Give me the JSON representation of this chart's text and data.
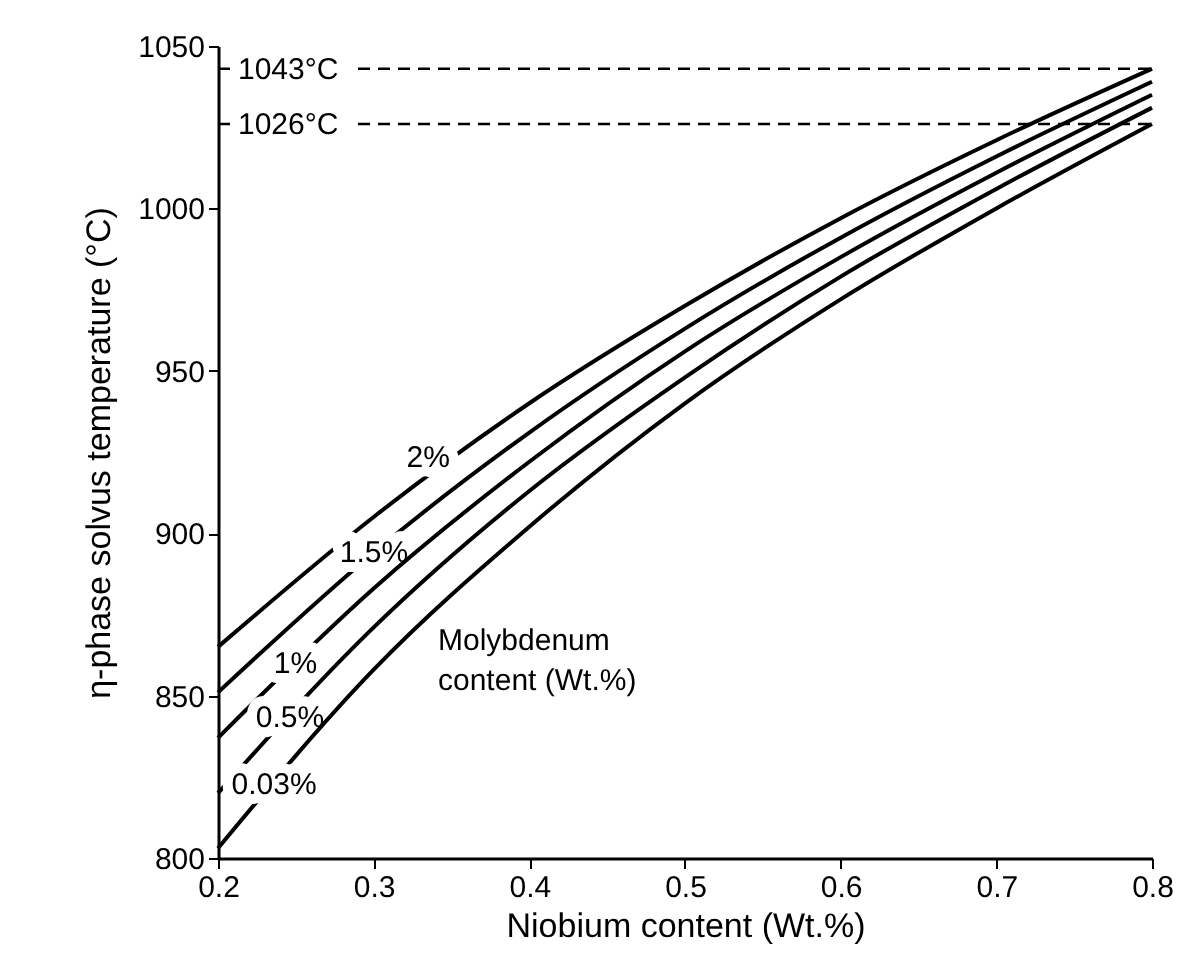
{
  "chart_data": {
    "type": "line",
    "xlabel": "Niobium content (Wt.%)",
    "ylabel": "η-phase solvus temperature (°C)",
    "x": [
      0.2,
      0.3,
      0.4,
      0.5,
      0.6,
      0.7,
      0.8
    ],
    "series": [
      {
        "name": "2%",
        "color": "#000000",
        "values": [
          865,
          905,
          940,
          970,
          997,
          1021,
          1043
        ]
      },
      {
        "name": "1.5%",
        "color": "#000000",
        "values": [
          851,
          894,
          931,
          963,
          991,
          1016,
          1039
        ]
      },
      {
        "name": "1%",
        "color": "#000000",
        "values": [
          837,
          883,
          922,
          956,
          985,
          1011,
          1035
        ]
      },
      {
        "name": "0.5%",
        "color": "#000000",
        "values": [
          820,
          871,
          913,
          948,
          979,
          1006,
          1031
        ]
      },
      {
        "name": "0.03%",
        "color": "#000000",
        "values": [
          803,
          858,
          902,
          940,
          972,
          1000,
          1026
        ]
      }
    ],
    "xlim": [
      0.2,
      0.8
    ],
    "xticks": [
      0.2,
      0.3,
      0.4,
      0.5,
      0.6,
      0.7,
      0.8
    ],
    "ylim": [
      800,
      1050
    ],
    "yticks": [
      800,
      850,
      900,
      950,
      1000,
      1050
    ],
    "grid": false,
    "marker": "none",
    "line_style": "solid",
    "ref_lines": [
      {
        "axis": "y",
        "value": 1043,
        "label": "1043°C",
        "line_style": "dashed"
      },
      {
        "axis": "y",
        "value": 1026,
        "label": "1026°C",
        "line_style": "dashed"
      }
    ],
    "annotations": [
      "Molybdenum content (Wt.%)"
    ]
  }
}
